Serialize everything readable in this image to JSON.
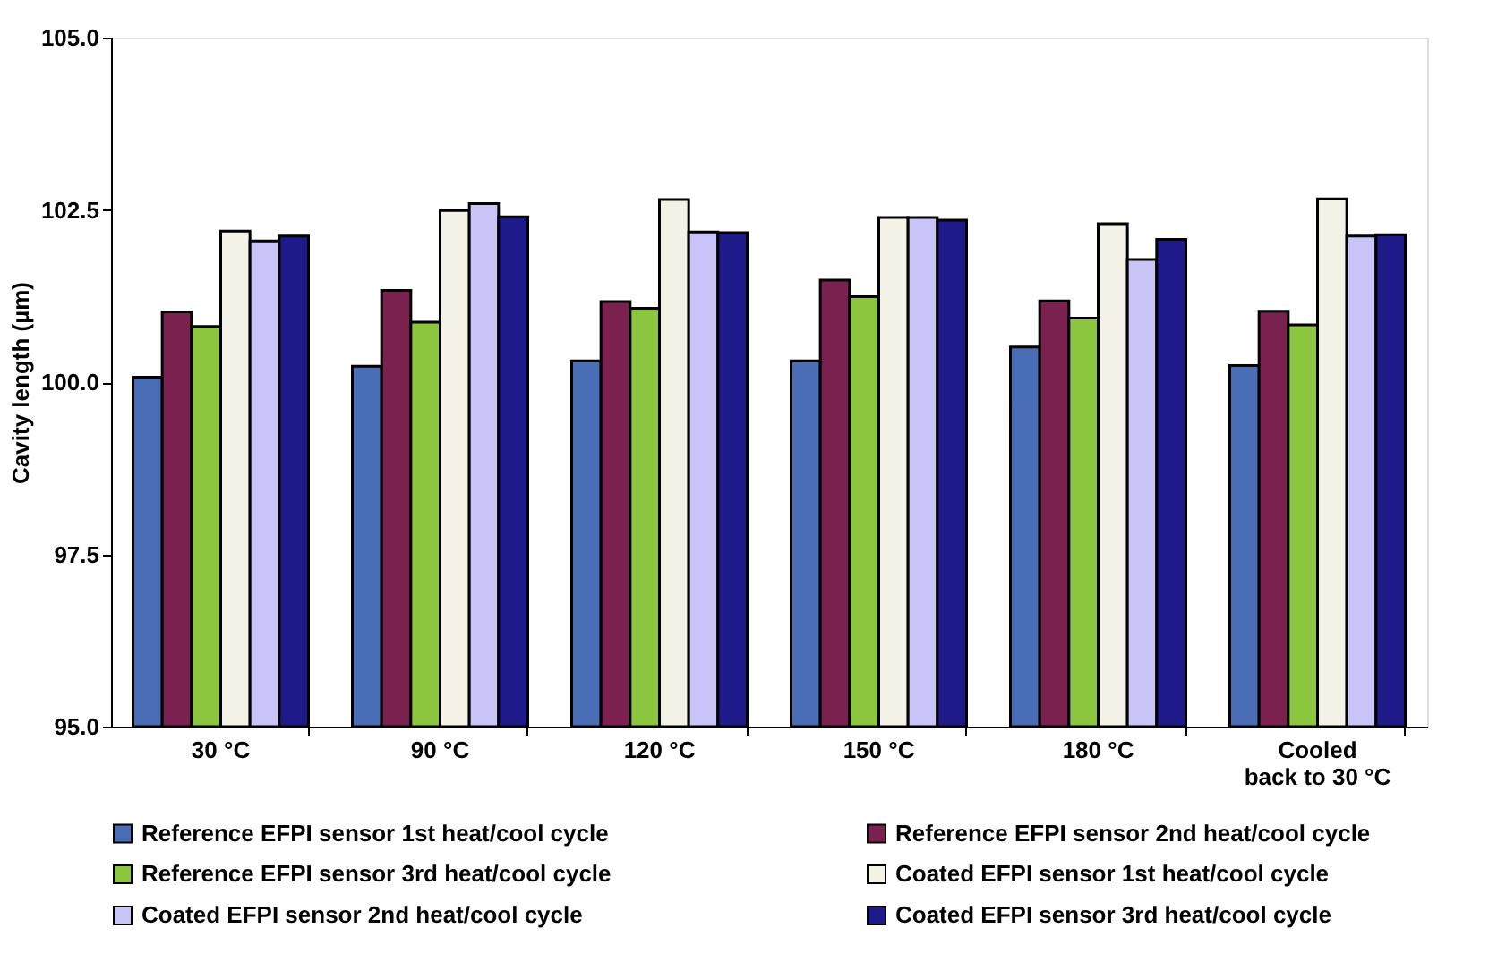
{
  "chart_data": {
    "type": "bar",
    "ylabel": "Cavity length (µm)",
    "categories": [
      "30 °C",
      "90 °C",
      "120 °C",
      "150 °C",
      "180 °C",
      "Cooled\nback to 30 °C"
    ],
    "series": [
      {
        "name": "Reference EFPI sensor 1st heat/cool cycle",
        "color": "#4a6eb5",
        "values": [
          100.07,
          100.23,
          100.31,
          100.31,
          100.51,
          100.24
        ]
      },
      {
        "name": "Reference EFPI sensor 2nd heat/cool cycle",
        "color": "#7b2150",
        "values": [
          101.02,
          101.33,
          101.17,
          101.48,
          101.18,
          101.03
        ]
      },
      {
        "name": "Reference EFPI sensor 3rd heat/cool cycle",
        "color": "#8cc63f",
        "values": [
          100.81,
          100.87,
          101.07,
          101.24,
          100.93,
          100.83
        ]
      },
      {
        "name": "Coated EFPI sensor 1st heat/cool cycle",
        "color": "#f4f2e6",
        "values": [
          102.19,
          102.49,
          102.65,
          102.39,
          102.3,
          102.66
        ]
      },
      {
        "name": "Coated EFPI sensor 2nd heat/cool cycle",
        "color": "#c8c4f8",
        "values": [
          102.05,
          102.59,
          102.18,
          102.39,
          101.78,
          102.12
        ]
      },
      {
        "name": "Coated EFPI sensor 3rd heat/cool cycle",
        "color": "#1e1a8a",
        "values": [
          102.12,
          102.4,
          102.17,
          102.35,
          102.07,
          102.14
        ]
      }
    ],
    "ylim": [
      95,
      105
    ],
    "yticks": [
      {
        "value": 95,
        "label": "95.0"
      },
      {
        "value": 97.5,
        "label": "97.5"
      },
      {
        "value": 100,
        "label": "100.0"
      },
      {
        "value": 102.5,
        "label": "102.5"
      },
      {
        "value": 105,
        "label": "105.0"
      }
    ],
    "grid": false,
    "legend": "bottom"
  }
}
